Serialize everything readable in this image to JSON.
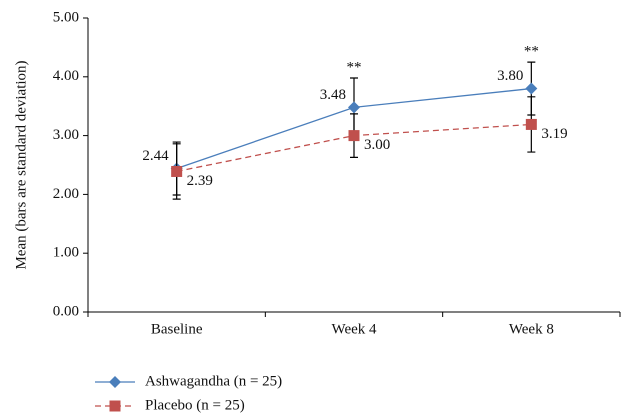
{
  "chart_data": {
    "type": "line",
    "y_label": "Mean (bars are standard deviation)",
    "categories": [
      "Baseline",
      "Week 4",
      "Week 8"
    ],
    "series": [
      {
        "name": "Ashwagandha (n = 25)",
        "color": "#4a7ebb",
        "marker": "diamond",
        "dashed": false,
        "values": [
          2.44,
          3.48,
          3.8
        ],
        "value_labels": [
          "2.44",
          "3.48",
          "3.80"
        ],
        "errors": [
          0.45,
          0.5,
          0.45
        ]
      },
      {
        "name": "Placebo (n = 25)",
        "color": "#c0504d",
        "marker": "square",
        "dashed": true,
        "values": [
          2.39,
          3.0,
          3.19
        ],
        "value_labels": [
          "2.39",
          "3.00",
          "3.19"
        ],
        "errors": [
          0.47,
          0.37,
          0.47
        ]
      }
    ],
    "annotations": [
      null,
      "**",
      "**"
    ],
    "ylim": [
      0,
      5
    ],
    "yticks": [
      {
        "value": 0,
        "label": "0.00"
      },
      {
        "value": 1,
        "label": "1.00"
      },
      {
        "value": 2,
        "label": "2.00"
      },
      {
        "value": 3,
        "label": "3.00"
      },
      {
        "value": 4,
        "label": "4.00"
      },
      {
        "value": 5,
        "label": "5.00"
      }
    ],
    "legend": "bottom-left"
  }
}
